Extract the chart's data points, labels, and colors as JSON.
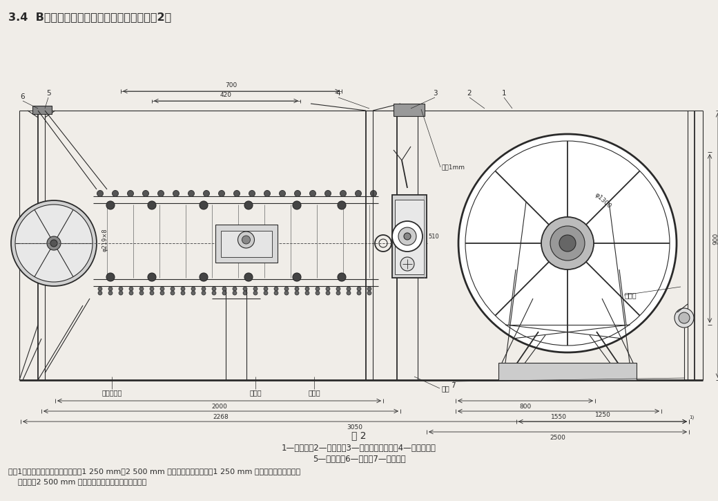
{
  "title_text": "3.4  B型软梯卷车的结构型式和基本尺寸按图2。",
  "fig_label": "图 2",
  "caption_line1": "1—电动机；2—减速笱；3—离合器操纵装置；4—滚筒装置；",
  "caption_line2": "5—轴承座；6—座架；7—刹车装置",
  "note_line1": "注：1）由卷车中心线至荥边的距离1 250 mm，2 500 mm 分别为推荐尺寸，其中1 250 mm 为与翻转荥梯并用的安",
  "note_line2": "    装尺寸，2 500 mm 为与平移式荥梯并用的安装尺寸。",
  "bg_color": "#f0ede8",
  "text_color": "#1a1a1a",
  "drawing_color": "#2a2a2a",
  "dim_color": "#1a1a1a"
}
